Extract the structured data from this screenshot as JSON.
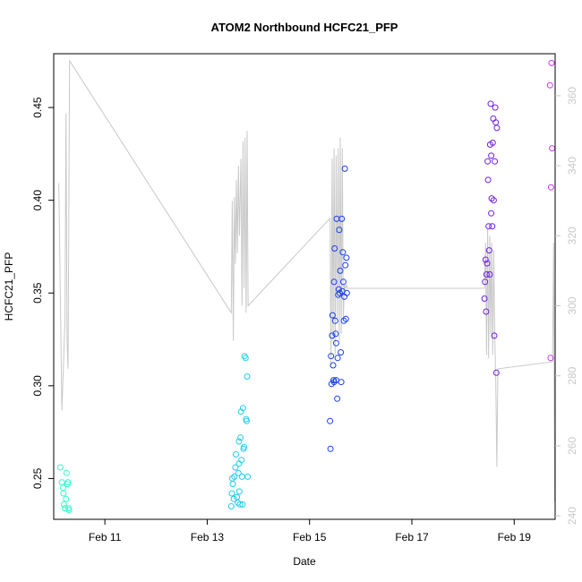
{
  "chart_data": {
    "type": "scatter",
    "title": "ATOM2 Northbound HCFC21_PFP",
    "xlabel": "Date",
    "ylabel": "HCFC21_PFP",
    "x_ticks": [
      {
        "day": 11,
        "label": "Feb 11"
      },
      {
        "day": 13,
        "label": "Feb 13"
      },
      {
        "day": 15,
        "label": "Feb 15"
      },
      {
        "day": 17,
        "label": "Feb 17"
      },
      {
        "day": 19,
        "label": "Feb 19"
      }
    ],
    "xlim": [
      10.0,
      19.8
    ],
    "y_left": {
      "lim": [
        0.228,
        0.479
      ],
      "ticks": [
        {
          "value": 0.25,
          "label": "0.25"
        },
        {
          "value": 0.3,
          "label": "0.30"
        },
        {
          "value": 0.35,
          "label": "0.35"
        },
        {
          "value": 0.4,
          "label": "0.40"
        },
        {
          "value": 0.45,
          "label": "0.45"
        }
      ]
    },
    "y_right": {
      "lim": [
        239,
        372
      ],
      "color": "#c8c8c8",
      "ticks": [
        {
          "value": 240,
          "label": "240"
        },
        {
          "value": 260,
          "label": "260"
        },
        {
          "value": 280,
          "label": "280"
        },
        {
          "value": 300,
          "label": "300"
        },
        {
          "value": 320,
          "label": "320"
        },
        {
          "value": 340,
          "label": "340"
        },
        {
          "value": 360,
          "label": "360"
        }
      ]
    },
    "points": [
      {
        "x": 10.13,
        "y": 0.256,
        "color": "#33ffcc"
      },
      {
        "x": 10.16,
        "y": 0.248,
        "color": "#33ffcc"
      },
      {
        "x": 10.18,
        "y": 0.245,
        "color": "#33ffcc"
      },
      {
        "x": 10.19,
        "y": 0.242,
        "color": "#33ffcc"
      },
      {
        "x": 10.2,
        "y": 0.236,
        "color": "#33ffcc"
      },
      {
        "x": 10.22,
        "y": 0.234,
        "color": "#33ffcc"
      },
      {
        "x": 10.24,
        "y": 0.239,
        "color": "#33ffcc"
      },
      {
        "x": 10.25,
        "y": 0.253,
        "color": "#33ffcc"
      },
      {
        "x": 10.27,
        "y": 0.247,
        "color": "#33ffcc"
      },
      {
        "x": 10.28,
        "y": 0.248,
        "color": "#33ffcc"
      },
      {
        "x": 10.29,
        "y": 0.234,
        "color": "#33ffcc"
      },
      {
        "x": 10.3,
        "y": 0.233,
        "color": "#33ffcc"
      },
      {
        "x": 13.47,
        "y": 0.235,
        "color": "#22ccee"
      },
      {
        "x": 13.48,
        "y": 0.242,
        "color": "#22ccee"
      },
      {
        "x": 13.49,
        "y": 0.25,
        "color": "#22ccee"
      },
      {
        "x": 13.5,
        "y": 0.247,
        "color": "#22ccee"
      },
      {
        "x": 13.52,
        "y": 0.239,
        "color": "#22ccee"
      },
      {
        "x": 13.53,
        "y": 0.251,
        "color": "#22ccee"
      },
      {
        "x": 13.55,
        "y": 0.256,
        "color": "#22ccee"
      },
      {
        "x": 13.56,
        "y": 0.263,
        "color": "#22ccee"
      },
      {
        "x": 13.58,
        "y": 0.24,
        "color": "#22ccee"
      },
      {
        "x": 13.6,
        "y": 0.237,
        "color": "#22ccee"
      },
      {
        "x": 13.61,
        "y": 0.253,
        "color": "#22ccee"
      },
      {
        "x": 13.62,
        "y": 0.258,
        "color": "#22ccee"
      },
      {
        "x": 13.63,
        "y": 0.243,
        "color": "#22ccee"
      },
      {
        "x": 13.64,
        "y": 0.236,
        "color": "#22ccee"
      },
      {
        "x": 13.65,
        "y": 0.272,
        "color": "#22ccee"
      },
      {
        "x": 13.66,
        "y": 0.286,
        "color": "#22ccee"
      },
      {
        "x": 13.67,
        "y": 0.26,
        "color": "#22ccee"
      },
      {
        "x": 13.68,
        "y": 0.251,
        "color": "#22ccee"
      },
      {
        "x": 13.69,
        "y": 0.236,
        "color": "#22ccee"
      },
      {
        "x": 13.7,
        "y": 0.288,
        "color": "#22ccee"
      },
      {
        "x": 13.71,
        "y": 0.266,
        "color": "#22ccee"
      },
      {
        "x": 13.72,
        "y": 0.267,
        "color": "#22ccee"
      },
      {
        "x": 13.73,
        "y": 0.316,
        "color": "#22ccee"
      },
      {
        "x": 13.75,
        "y": 0.315,
        "color": "#22ccee"
      },
      {
        "x": 13.76,
        "y": 0.282,
        "color": "#22ccee"
      },
      {
        "x": 13.77,
        "y": 0.281,
        "color": "#22ccee"
      },
      {
        "x": 13.78,
        "y": 0.305,
        "color": "#22ccee"
      },
      {
        "x": 13.79,
        "y": 0.251,
        "color": "#22ccee"
      },
      {
        "x": 13.62,
        "y": 0.27,
        "color": "#22ccee"
      },
      {
        "x": 15.4,
        "y": 0.281,
        "color": "#1a3fee"
      },
      {
        "x": 15.41,
        "y": 0.266,
        "color": "#1a3fee"
      },
      {
        "x": 15.42,
        "y": 0.316,
        "color": "#1a3fee"
      },
      {
        "x": 15.43,
        "y": 0.301,
        "color": "#1a3fee"
      },
      {
        "x": 15.44,
        "y": 0.327,
        "color": "#1a3fee"
      },
      {
        "x": 15.45,
        "y": 0.338,
        "color": "#1a3fee"
      },
      {
        "x": 15.46,
        "y": 0.311,
        "color": "#1a3fee"
      },
      {
        "x": 15.47,
        "y": 0.303,
        "color": "#1a3fee"
      },
      {
        "x": 15.48,
        "y": 0.356,
        "color": "#1a3fee"
      },
      {
        "x": 15.49,
        "y": 0.374,
        "color": "#1a3fee"
      },
      {
        "x": 15.5,
        "y": 0.335,
        "color": "#1a3fee"
      },
      {
        "x": 15.51,
        "y": 0.328,
        "color": "#1a3fee"
      },
      {
        "x": 15.52,
        "y": 0.323,
        "color": "#1a3fee"
      },
      {
        "x": 15.53,
        "y": 0.39,
        "color": "#1a3fee"
      },
      {
        "x": 15.54,
        "y": 0.293,
        "color": "#1a3fee"
      },
      {
        "x": 15.55,
        "y": 0.315,
        "color": "#1a3fee"
      },
      {
        "x": 15.56,
        "y": 0.349,
        "color": "#1a3fee"
      },
      {
        "x": 15.57,
        "y": 0.352,
        "color": "#1a3fee"
      },
      {
        "x": 15.58,
        "y": 0.384,
        "color": "#1a3fee"
      },
      {
        "x": 15.59,
        "y": 0.35,
        "color": "#1a3fee"
      },
      {
        "x": 15.6,
        "y": 0.362,
        "color": "#1a3fee"
      },
      {
        "x": 15.61,
        "y": 0.318,
        "color": "#1a3fee"
      },
      {
        "x": 15.62,
        "y": 0.302,
        "color": "#1a3fee"
      },
      {
        "x": 15.63,
        "y": 0.39,
        "color": "#1a3fee"
      },
      {
        "x": 15.64,
        "y": 0.351,
        "color": "#1a3fee"
      },
      {
        "x": 15.65,
        "y": 0.372,
        "color": "#1a3fee"
      },
      {
        "x": 15.66,
        "y": 0.356,
        "color": "#1a3fee"
      },
      {
        "x": 15.67,
        "y": 0.335,
        "color": "#1a3fee"
      },
      {
        "x": 15.68,
        "y": 0.348,
        "color": "#1a3fee"
      },
      {
        "x": 15.69,
        "y": 0.417,
        "color": "#1a3fee"
      },
      {
        "x": 15.7,
        "y": 0.365,
        "color": "#1a3fee"
      },
      {
        "x": 15.71,
        "y": 0.336,
        "color": "#1a3fee"
      },
      {
        "x": 15.72,
        "y": 0.369,
        "color": "#1a3fee"
      },
      {
        "x": 15.73,
        "y": 0.35,
        "color": "#1a3fee"
      },
      {
        "x": 15.48,
        "y": 0.302,
        "color": "#1a3fee"
      },
      {
        "x": 15.52,
        "y": 0.303,
        "color": "#1a3fee"
      },
      {
        "x": 18.42,
        "y": 0.347,
        "color": "#7020e0"
      },
      {
        "x": 18.43,
        "y": 0.356,
        "color": "#7020e0"
      },
      {
        "x": 18.44,
        "y": 0.368,
        "color": "#7020e0"
      },
      {
        "x": 18.45,
        "y": 0.34,
        "color": "#7020e0"
      },
      {
        "x": 18.46,
        "y": 0.36,
        "color": "#7020e0"
      },
      {
        "x": 18.47,
        "y": 0.366,
        "color": "#7020e0"
      },
      {
        "x": 18.48,
        "y": 0.421,
        "color": "#7020e0"
      },
      {
        "x": 18.49,
        "y": 0.411,
        "color": "#7020e0"
      },
      {
        "x": 18.5,
        "y": 0.386,
        "color": "#7020e0"
      },
      {
        "x": 18.51,
        "y": 0.373,
        "color": "#7020e0"
      },
      {
        "x": 18.52,
        "y": 0.36,
        "color": "#7020e0"
      },
      {
        "x": 18.53,
        "y": 0.43,
        "color": "#7020e0"
      },
      {
        "x": 18.54,
        "y": 0.452,
        "color": "#7020e0"
      },
      {
        "x": 18.55,
        "y": 0.393,
        "color": "#7020e0"
      },
      {
        "x": 18.56,
        "y": 0.401,
        "color": "#7020e0"
      },
      {
        "x": 18.57,
        "y": 0.386,
        "color": "#7020e0"
      },
      {
        "x": 18.58,
        "y": 0.431,
        "color": "#7020e0"
      },
      {
        "x": 18.59,
        "y": 0.444,
        "color": "#7020e0"
      },
      {
        "x": 18.6,
        "y": 0.4,
        "color": "#7020e0"
      },
      {
        "x": 18.61,
        "y": 0.327,
        "color": "#7020e0"
      },
      {
        "x": 18.62,
        "y": 0.421,
        "color": "#7020e0"
      },
      {
        "x": 18.63,
        "y": 0.45,
        "color": "#7020e0"
      },
      {
        "x": 18.64,
        "y": 0.442,
        "color": "#7020e0"
      },
      {
        "x": 18.65,
        "y": 0.307,
        "color": "#7020e0"
      },
      {
        "x": 18.66,
        "y": 0.439,
        "color": "#7020e0"
      },
      {
        "x": 18.55,
        "y": 0.424,
        "color": "#7020e0"
      },
      {
        "x": 19.7,
        "y": 0.462,
        "color": "#cc33ee"
      },
      {
        "x": 19.72,
        "y": 0.407,
        "color": "#cc33ee"
      },
      {
        "x": 19.73,
        "y": 0.474,
        "color": "#cc33ee"
      },
      {
        "x": 19.74,
        "y": 0.428,
        "color": "#cc33ee"
      },
      {
        "x": 19.71,
        "y": 0.315,
        "color": "#cc33ee"
      }
    ],
    "line": {
      "color": "#c8c8c8",
      "points": [
        [
          10.1,
          335
        ],
        [
          10.16,
          270
        ],
        [
          10.22,
          296
        ],
        [
          10.24,
          355
        ],
        [
          10.26,
          290
        ],
        [
          10.28,
          282
        ],
        [
          10.31,
          370
        ],
        [
          13.47,
          298
        ],
        [
          13.49,
          330
        ],
        [
          13.51,
          290
        ],
        [
          13.53,
          331
        ],
        [
          13.55,
          312
        ],
        [
          13.57,
          336
        ],
        [
          13.59,
          315
        ],
        [
          13.61,
          340
        ],
        [
          13.63,
          320
        ],
        [
          13.66,
          342
        ],
        [
          13.68,
          300
        ],
        [
          13.7,
          347
        ],
        [
          13.72,
          305
        ],
        [
          13.74,
          348
        ],
        [
          13.76,
          298
        ],
        [
          13.78,
          350
        ],
        [
          13.8,
          300
        ],
        [
          15.4,
          325
        ],
        [
          15.42,
          283
        ],
        [
          15.44,
          342
        ],
        [
          15.46,
          290
        ],
        [
          15.48,
          345
        ],
        [
          15.5,
          286
        ],
        [
          15.52,
          343
        ],
        [
          15.54,
          296
        ],
        [
          15.56,
          345
        ],
        [
          15.58,
          290
        ],
        [
          15.6,
          348
        ],
        [
          15.62,
          292
        ],
        [
          15.64,
          345
        ],
        [
          15.66,
          296
        ],
        [
          15.68,
          306
        ],
        [
          15.7,
          305
        ],
        [
          15.72,
          306
        ],
        [
          15.74,
          305
        ],
        [
          18.42,
          305
        ],
        [
          18.44,
          318
        ],
        [
          18.46,
          286
        ],
        [
          18.48,
          322
        ],
        [
          18.5,
          285
        ],
        [
          18.52,
          320
        ],
        [
          18.54,
          292
        ],
        [
          18.56,
          318
        ],
        [
          18.58,
          286
        ],
        [
          18.6,
          316
        ],
        [
          18.62,
          291
        ],
        [
          18.64,
          278
        ],
        [
          18.66,
          254
        ],
        [
          18.68,
          282
        ],
        [
          19.75,
          284
        ],
        [
          19.77,
          318
        ],
        [
          19.79,
          244
        ]
      ]
    }
  }
}
